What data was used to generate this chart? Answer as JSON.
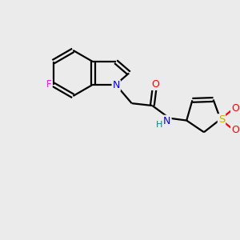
{
  "bg_color": "#ebebeb",
  "bond_color": "#000000",
  "atom_colors": {
    "N": "#0000ff",
    "O": "#ff0000",
    "F": "#ff00ff",
    "S": "#ccaa00",
    "NH_color": "#008b8b",
    "C": "#000000"
  },
  "line_width": 1.6,
  "figsize": [
    3.0,
    3.0
  ],
  "dpi": 100
}
